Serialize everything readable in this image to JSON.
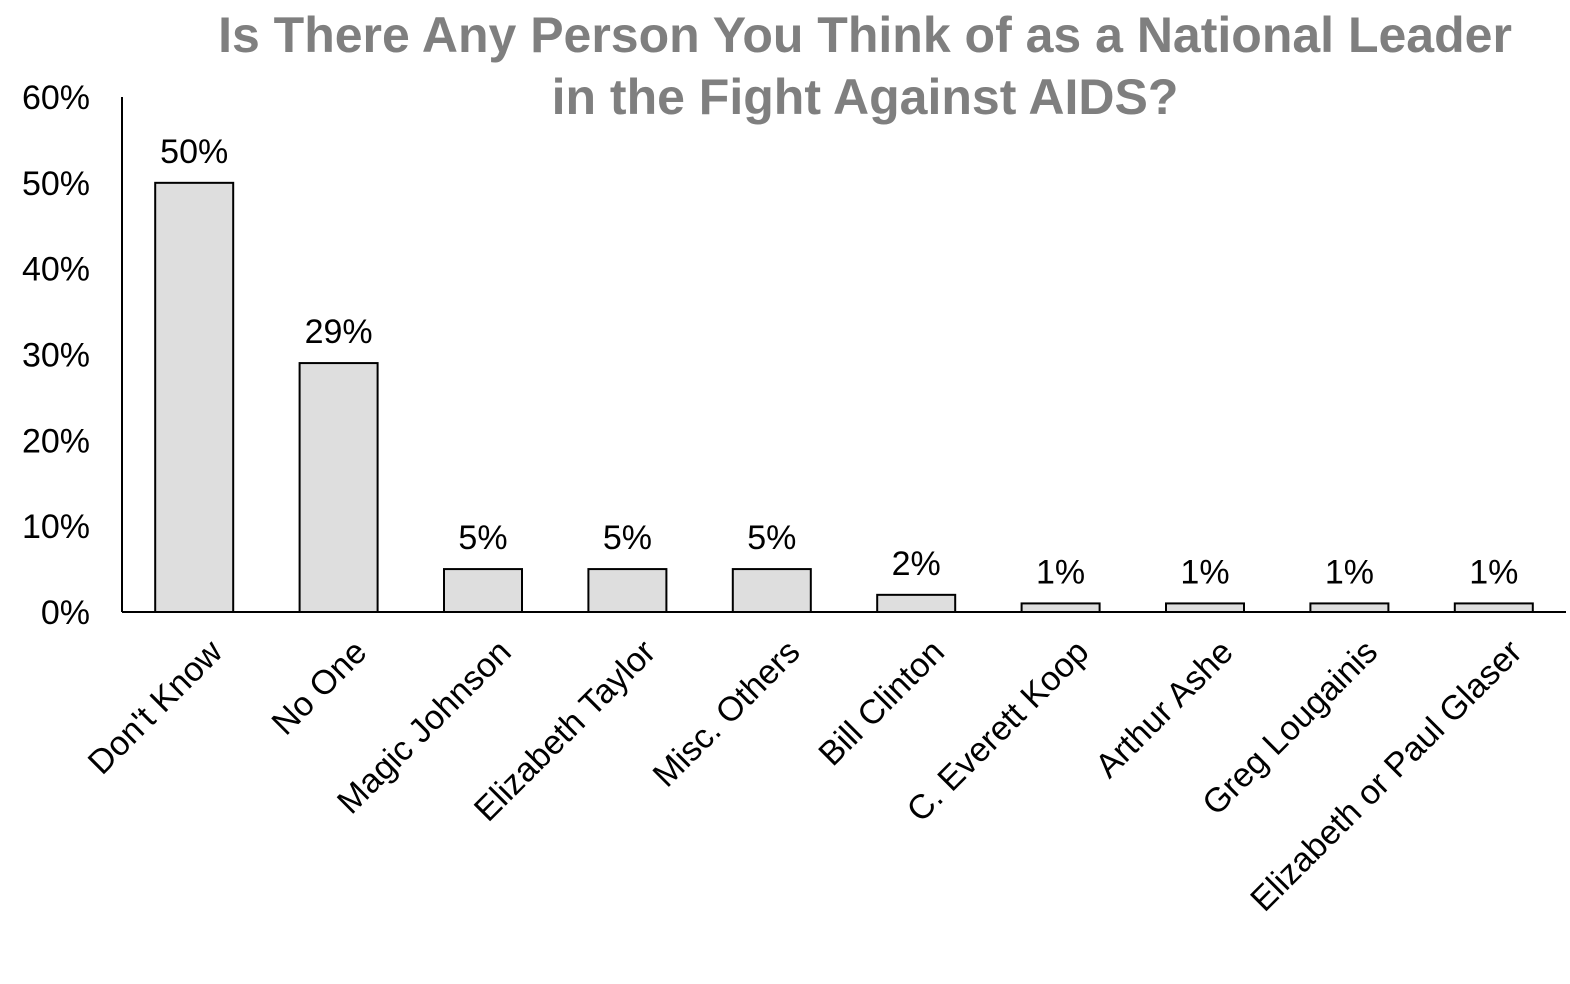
{
  "chart_data": {
    "type": "bar",
    "title": "Is There Any Person You Think of as a National Leader in the Fight Against AIDS?",
    "title_lines": [
      "Is There Any Person You Think of as a National Leader",
      "in the Fight Against AIDS?"
    ],
    "categories": [
      "Don't Know",
      "No One",
      "Magic Johnson",
      "Elizabeth Taylor",
      "Misc. Others",
      "Bill Clinton",
      "C. Everett Koop",
      "Arthur Ashe",
      "Greg Lougainis",
      "Elizabeth or Paul Glaser"
    ],
    "values": [
      50,
      29,
      5,
      5,
      5,
      2,
      1,
      1,
      1,
      1
    ],
    "data_labels": [
      "50%",
      "29%",
      "5%",
      "5%",
      "5%",
      "2%",
      "1%",
      "1%",
      "1%",
      "1%"
    ],
    "y_ticks": [
      0,
      10,
      20,
      30,
      40,
      50,
      60
    ],
    "y_tick_labels": [
      "0%",
      "10%",
      "20%",
      "30%",
      "40%",
      "50%",
      "60%"
    ],
    "ylim": [
      0,
      60
    ],
    "xlabel": "",
    "ylabel": "",
    "grid": false,
    "legend": "none",
    "colors": {
      "bar_fill": "#dedede",
      "bar_stroke": "#000000",
      "title": "#7f7f7f",
      "axis": "#000000"
    }
  }
}
